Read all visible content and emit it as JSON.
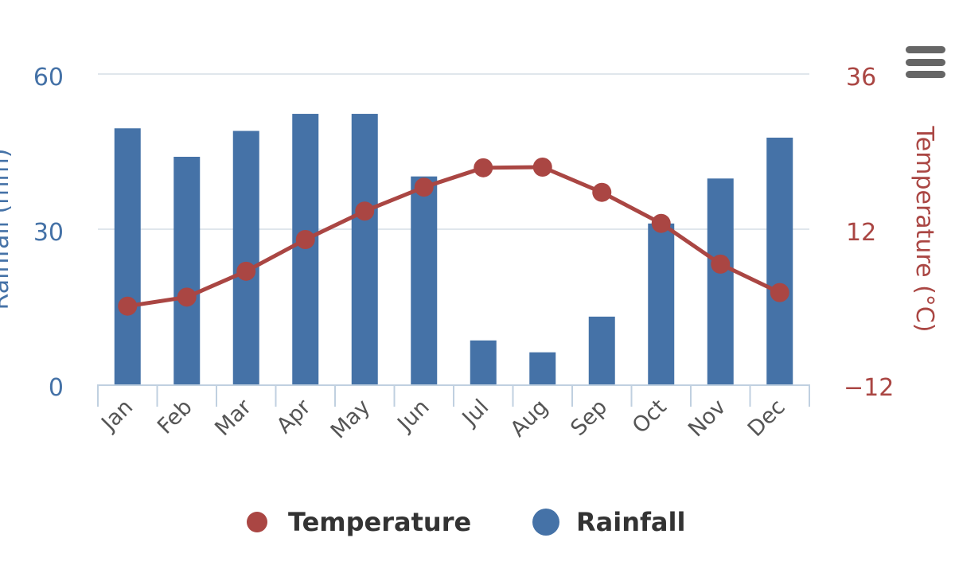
{
  "chart_data": {
    "type": "bar+line",
    "title": "",
    "categories": [
      "Jan",
      "Feb",
      "Mar",
      "Apr",
      "May",
      "Jun",
      "Jul",
      "Aug",
      "Sep",
      "Oct",
      "Nov",
      "Dec"
    ],
    "series": [
      {
        "name": "Rainfall",
        "type": "bar",
        "axis": "left",
        "color": "#4572a7",
        "values": [
          49.5,
          44.0,
          49.0,
          52.3,
          52.3,
          40.2,
          8.5,
          6.2,
          13.1,
          31.1,
          39.8,
          47.7
        ]
      },
      {
        "name": "Temperature",
        "type": "line",
        "axis": "right",
        "color": "#aa4643",
        "values": [
          0.1,
          1.5,
          5.5,
          10.4,
          14.8,
          18.5,
          21.5,
          21.6,
          17.7,
          12.9,
          6.6,
          2.2
        ]
      }
    ],
    "y_left": {
      "label": "Rainfall (mm)",
      "ticks": [
        "0",
        "30",
        "60"
      ],
      "range": [
        0,
        60
      ],
      "color": "#4572a7"
    },
    "y_right": {
      "label": "Temperature (°C)",
      "ticks": [
        "−12",
        "12",
        "36"
      ],
      "range": [
        -12,
        36
      ],
      "color": "#aa4643"
    },
    "grid": true,
    "legend": {
      "position": "bottom-center",
      "items": [
        {
          "label": "Temperature",
          "color": "#aa4643"
        },
        {
          "label": "Rainfall",
          "color": "#4572a7"
        }
      ]
    }
  },
  "menu": {
    "icon": "hamburger-menu-icon",
    "color": "#666666"
  }
}
